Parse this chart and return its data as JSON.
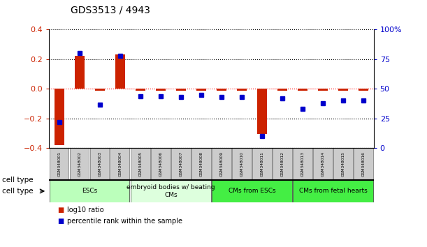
{
  "title": "GDS3513 / 4943",
  "samples": [
    "GSM348001",
    "GSM348002",
    "GSM348003",
    "GSM348004",
    "GSM348005",
    "GSM348006",
    "GSM348007",
    "GSM348008",
    "GSM348009",
    "GSM348010",
    "GSM348011",
    "GSM348012",
    "GSM348013",
    "GSM348014",
    "GSM348015",
    "GSM348016"
  ],
  "log10_ratio": [
    -0.38,
    0.225,
    -0.01,
    0.235,
    -0.01,
    -0.01,
    -0.01,
    -0.01,
    -0.01,
    -0.01,
    -0.305,
    -0.01,
    -0.01,
    -0.01,
    -0.01,
    -0.01
  ],
  "percentile_rank": [
    22,
    80,
    37,
    78,
    44,
    44,
    43,
    45,
    43,
    43,
    10,
    42,
    33,
    38,
    40,
    40
  ],
  "ylim_left": [
    -0.4,
    0.4
  ],
  "ylim_right": [
    0,
    100
  ],
  "yticks_left": [
    -0.4,
    -0.2,
    0.0,
    0.2,
    0.4
  ],
  "yticks_right": [
    0,
    25,
    50,
    75,
    100
  ],
  "ytick_labels_right": [
    "0",
    "25",
    "50",
    "75",
    "100%"
  ],
  "bar_color": "#cc2200",
  "scatter_color": "#0000cc",
  "cell_type_groups": [
    {
      "label": "ESCs",
      "start": 0,
      "end": 3,
      "color": "#bbffbb"
    },
    {
      "label": "embryoid bodies w/ beating\nCMs",
      "start": 4,
      "end": 7,
      "color": "#ddffdd"
    },
    {
      "label": "CMs from ESCs",
      "start": 8,
      "end": 11,
      "color": "#44ee44"
    },
    {
      "label": "CMs from fetal hearts",
      "start": 12,
      "end": 15,
      "color": "#44ee44"
    }
  ],
  "cell_type_label": "cell type",
  "legend_entries": [
    {
      "label": "log10 ratio",
      "color": "#cc2200"
    },
    {
      "label": "percentile rank within the sample",
      "color": "#0000cc"
    }
  ]
}
